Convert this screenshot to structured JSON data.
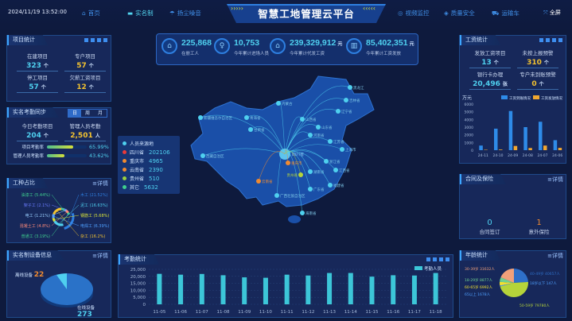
{
  "header": {
    "datetime": "2024/11/19 13:52:00",
    "title": "智慧工地管理云平台",
    "fullscreen": "全屏",
    "nav_left": [
      {
        "label": "首页",
        "icon": "home-icon"
      },
      {
        "label": "实名制",
        "icon": "idcard-icon",
        "active": true
      },
      {
        "label": "扬尘噪音",
        "icon": "dust-icon"
      }
    ],
    "nav_right": [
      {
        "label": "视频监控",
        "icon": "camera-icon"
      },
      {
        "label": "质量安全",
        "icon": "shield-icon"
      },
      {
        "label": "运输车",
        "icon": "truck-icon"
      }
    ]
  },
  "top_stats": [
    {
      "value": "225,868",
      "unit": "",
      "label": "在册工人"
    },
    {
      "value": "10,753",
      "unit": "",
      "label": "今年累计进场人员"
    },
    {
      "value": "239,329,912",
      "unit": "元",
      "label": "今年累计代发工资"
    },
    {
      "value": "85,402,351",
      "unit": "元",
      "label": "今年累计工资发放"
    }
  ],
  "project_stats": {
    "title": "项目统计",
    "items": [
      {
        "label": "在建项目",
        "value": "323",
        "unit": "个",
        "color": "cy"
      },
      {
        "label": "专户项目",
        "value": "57",
        "unit": "个",
        "color": "yl"
      },
      {
        "label": "停工项目",
        "value": "57",
        "unit": "个",
        "color": "cy"
      },
      {
        "label": "欠薪工资项目",
        "value": "12",
        "unit": "个",
        "color": "yl"
      }
    ]
  },
  "attendance": {
    "title": "实名考勤同步",
    "tabs": [
      "日",
      "周",
      "月"
    ],
    "items": [
      {
        "label": "今日考勤项目",
        "value": "204",
        "unit": "个",
        "color": "cy"
      },
      {
        "label": "管理人员考勤",
        "value": "2,501",
        "unit": "人",
        "color": "yl"
      }
    ],
    "rates": [
      {
        "label": "项目考勤率",
        "value": "65.99%",
        "pct": 65.99
      },
      {
        "label": "管理人员考勤率",
        "value": "43.62%",
        "pct": 43.62
      }
    ]
  },
  "work_types": {
    "title": "工种占比",
    "more": "详情",
    "items": [
      {
        "label": "油漆工 (5.44%)",
        "pct": 5.44,
        "color": "#3ecf8e"
      },
      {
        "label": "架子工 (2.1%)",
        "pct": 2.1,
        "color": "#6a7cff"
      },
      {
        "label": "电工 (1.21%)",
        "pct": 1.21,
        "color": "#9ad0ff"
      },
      {
        "label": "混凝土工 (4.8%)",
        "pct": 4.8,
        "color": "#ff8a7a"
      },
      {
        "label": "普通工 (3.19%)",
        "pct": 3.19,
        "color": "#3ecf8e"
      },
      {
        "label": "木工 (21.52%)",
        "pct": 21.52,
        "color": "#2e7fe0"
      },
      {
        "label": "泥工 (16.63%)",
        "pct": 16.63,
        "color": "#4fd0ef"
      },
      {
        "label": "钢筋工 (5.68%)",
        "pct": 5.68,
        "color": "#d6e03a"
      },
      {
        "label": "电焊工 (6.39%)",
        "pct": 6.39,
        "color": "#4fa0ff"
      },
      {
        "label": "杂工 (16.2%)",
        "pct": 16.2,
        "color": "#f2c230"
      }
    ]
  },
  "equipment": {
    "title": "实名制设备信息",
    "more": "详情",
    "items": [
      {
        "label": "离线设备",
        "value": "22"
      },
      {
        "label": "在线设备",
        "value": "273"
      }
    ]
  },
  "source_legend": {
    "title": "人员来源地",
    "items": [
      {
        "label": "四川省",
        "value": "202106",
        "color": "#e83a3a"
      },
      {
        "label": "重庆市",
        "value": "4965",
        "color": "#f08a30"
      },
      {
        "label": "云南省",
        "value": "2390",
        "color": "#f08a30"
      },
      {
        "label": "贵州省",
        "value": "510",
        "color": "#9ad040"
      },
      {
        "label": "其它",
        "value": "5632",
        "color": "#3ecf8e"
      }
    ]
  },
  "map_labels": {
    "hub": "四川省",
    "places": [
      "黑龙江",
      "吉林省",
      "辽宁省",
      "内蒙古",
      "新疆维吾尔自治区",
      "西藏自治区",
      "甘肃省",
      "青海省",
      "山西省",
      "河南省",
      "山东省",
      "江苏省",
      "上海市",
      "浙江省",
      "湖南省",
      "江西省",
      "福建省",
      "广东省",
      "广西壮族自治区",
      "海南省",
      "重庆市",
      "贵州省",
      "云南省"
    ]
  },
  "attendance_chart": {
    "title": "考勤统计",
    "chart_data": {
      "type": "bar",
      "categories": [
        "11-05",
        "11-06",
        "11-07",
        "11-08",
        "11-09",
        "11-10",
        "11-11",
        "11-12",
        "11-13",
        "11-14",
        "11-15",
        "11-16",
        "11-17",
        "11-18"
      ],
      "series": [
        {
          "name": "考勤人员",
          "values": [
            21800,
            21200,
            21700,
            20800,
            19300,
            19000,
            21200,
            20600,
            22400,
            22400,
            19800,
            20800,
            20600,
            22400
          ]
        }
      ],
      "yticks": [
        "25,000",
        "20,000",
        "15,000",
        "10,000",
        "5,000",
        "0"
      ],
      "ylim": [
        0,
        25000
      ],
      "color": "#3cc6d8"
    }
  },
  "wage_stats": {
    "title": "工资统计",
    "items": [
      {
        "label": "发放工资项目",
        "value": "13",
        "unit": "个",
        "color": "cy"
      },
      {
        "label": "未按上报预警",
        "value": "310",
        "unit": "个",
        "color": "yl"
      },
      {
        "label": "银行卡办理",
        "value": "20,496",
        "unit": "张",
        "color": "cy"
      },
      {
        "label": "专户未到账预警",
        "value": "0",
        "unit": "个",
        "color": "yl"
      }
    ],
    "chart_data": {
      "type": "bar",
      "unit": "万元",
      "categories": [
        "24-11",
        "24-10",
        "24-09",
        "24-08",
        "24-07",
        "24-06"
      ],
      "ylim": [
        0,
        6000
      ],
      "yticks": [
        "6000",
        "5000",
        "4000",
        "3000",
        "2000",
        "1000",
        "0"
      ],
      "series": [
        {
          "name": "工资到账情况",
          "values": [
            600,
            2800,
            5100,
            3000,
            3700,
            1300
          ],
          "color": "#2e8be8"
        },
        {
          "name": "工资发放情况",
          "values": [
            50,
            80,
            550,
            280,
            600,
            300
          ],
          "color": "#f2a830"
        }
      ]
    }
  },
  "contract": {
    "title": "合同及保险",
    "more": "详情",
    "items": [
      {
        "label": "合同签订",
        "value": "0",
        "color": "cy"
      },
      {
        "label": "意外保险",
        "value": "1",
        "color": "or"
      }
    ]
  },
  "age": {
    "title": "年龄统计",
    "more": "详情",
    "items": [
      {
        "label": "30-39岁 31632人",
        "value": 31632,
        "color": "#f0a07a"
      },
      {
        "label": "40-49岁 40657人",
        "value": 40657,
        "color": "#2e6fc8"
      },
      {
        "label": "18岁以下 147人",
        "value": 147,
        "color": "#4fa0ff"
      },
      {
        "label": "50-59岁 79780人",
        "value": 79780,
        "color": "#b5d43a"
      },
      {
        "label": "65以上 1678人",
        "value": 1678,
        "color": "#4fa0ff"
      },
      {
        "label": "60-65岁 6992人",
        "value": 6992,
        "color": "#f2e030"
      },
      {
        "label": "18-29岁 8877人",
        "value": 8877,
        "color": "#6fd08f"
      }
    ]
  }
}
